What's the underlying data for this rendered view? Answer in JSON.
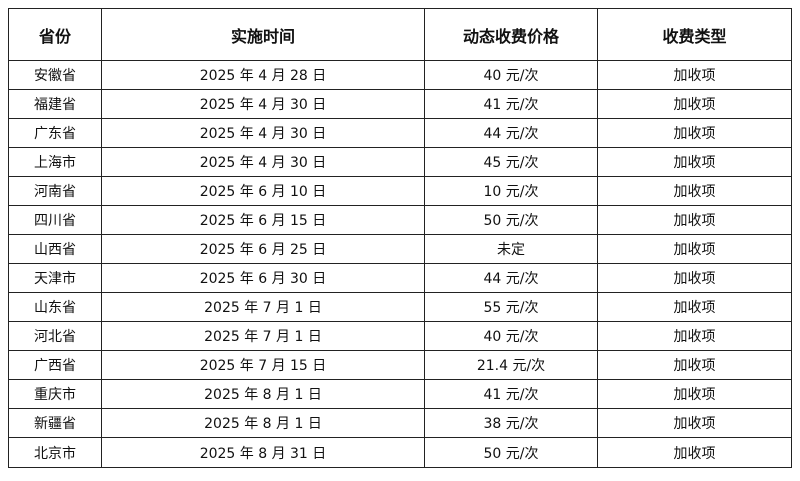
{
  "table": {
    "headers": [
      "省份",
      "实施时间",
      "动态收费价格",
      "收费类型"
    ],
    "rows": [
      [
        "安徽省",
        "2025 年 4 月 28 日",
        "40 元/次",
        "加收项"
      ],
      [
        "福建省",
        "2025 年 4 月 30 日",
        "41 元/次",
        "加收项"
      ],
      [
        "广东省",
        "2025 年 4 月 30 日",
        "44 元/次",
        "加收项"
      ],
      [
        "上海市",
        "2025 年 4 月 30 日",
        "45 元/次",
        "加收项"
      ],
      [
        "河南省",
        "2025 年 6 月 10 日",
        "10 元/次",
        "加收项"
      ],
      [
        "四川省",
        "2025 年 6 月 15 日",
        "50 元/次",
        "加收项"
      ],
      [
        "山西省",
        "2025 年 6 月 25 日",
        "未定",
        "加收项"
      ],
      [
        "天津市",
        "2025 年 6 月 30 日",
        "44 元/次",
        "加收项"
      ],
      [
        "山东省",
        "2025 年 7 月 1 日",
        "55 元/次",
        "加收项"
      ],
      [
        "河北省",
        "2025 年 7 月 1 日",
        "40 元/次",
        "加收项"
      ],
      [
        "广西省",
        "2025 年 7 月 15 日",
        "21.4 元/次",
        "加收项"
      ],
      [
        "重庆市",
        "2025 年 8 月 1 日",
        "41 元/次",
        "加收项"
      ],
      [
        "新疆省",
        "2025 年 8 月 1 日",
        "38 元/次",
        "加收项"
      ],
      [
        "北京市",
        "2025 年 8 月 31 日",
        "50 元/次",
        "加收项"
      ]
    ]
  }
}
